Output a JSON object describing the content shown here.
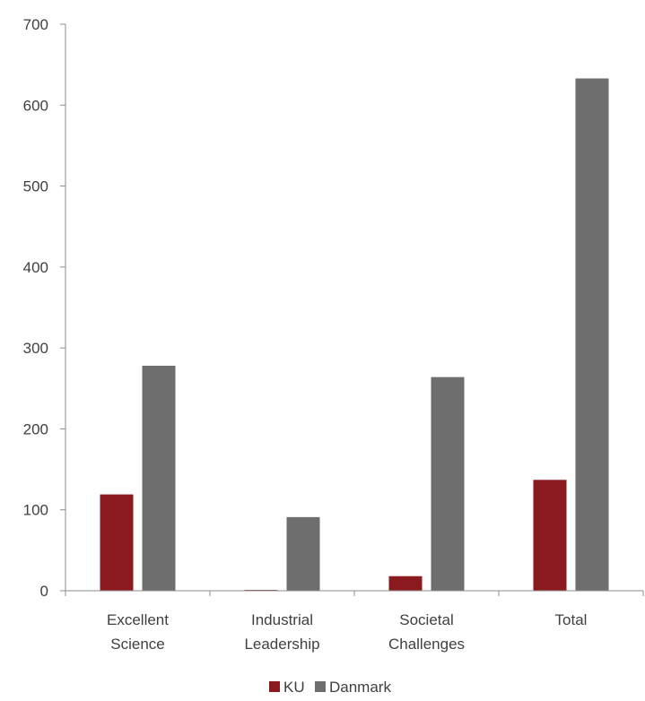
{
  "chart_data": {
    "type": "bar",
    "categories": [
      [
        "Excellent",
        "Science"
      ],
      [
        "Industrial",
        "Leadership"
      ],
      [
        "Societal",
        "Challenges"
      ],
      [
        "Total"
      ]
    ],
    "series": [
      {
        "name": "KU",
        "color": "#8b1a1e",
        "values": [
          119,
          1,
          18,
          137
        ]
      },
      {
        "name": "Danmark",
        "color": "#6e6e6e",
        "values": [
          278,
          91,
          264,
          633
        ]
      }
    ],
    "yticks": [
      "0",
      "100",
      "200",
      "300",
      "400",
      "500",
      "600",
      "700"
    ],
    "ylim": [
      0,
      700
    ],
    "grid": false,
    "legend": "bottom-center",
    "title": "",
    "xlabel": "",
    "ylabel": ""
  }
}
